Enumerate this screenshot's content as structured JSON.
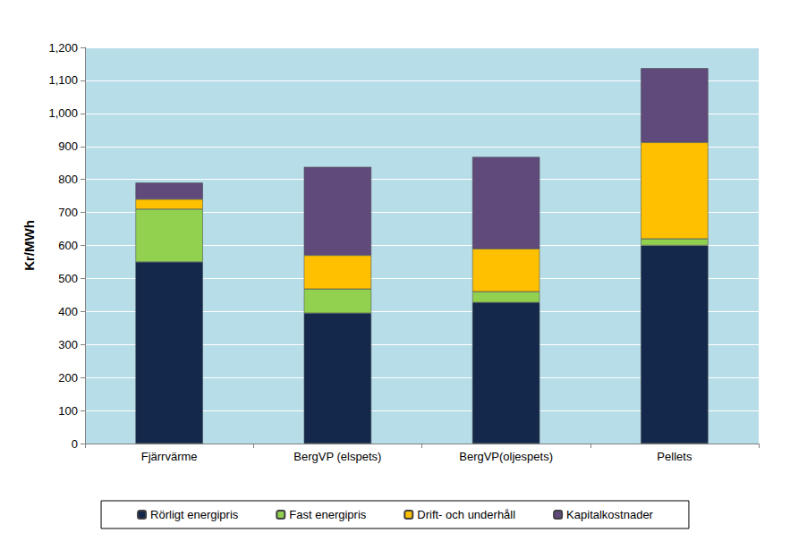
{
  "chart_data": {
    "type": "bar",
    "stacked": true,
    "y_label": "Kr/MWh",
    "categories": [
      "Fjärrvärme",
      "BergVP (elspets)",
      "BergVP(oljespets)",
      "Pellets"
    ],
    "series": [
      {
        "name": "Rörligt energipris",
        "color": "#13284a",
        "values": [
          550,
          395,
          427,
          600
        ]
      },
      {
        "name": "Fast energipris",
        "color": "#92d050",
        "values": [
          160,
          73,
          33,
          20
        ]
      },
      {
        "name": "Drift- och underhåll",
        "color": "#ffc000",
        "values": [
          30,
          102,
          130,
          292
        ]
      },
      {
        "name": "Kapitalkostnader",
        "color": "#604a7b",
        "values": [
          50,
          268,
          278,
          225
        ]
      }
    ],
    "ylim": [
      0,
      1200
    ],
    "yticks": [
      0,
      100,
      200,
      300,
      400,
      500,
      600,
      700,
      800,
      900,
      1000,
      1100,
      1200
    ],
    "grid": true,
    "legend": "bottom"
  }
}
